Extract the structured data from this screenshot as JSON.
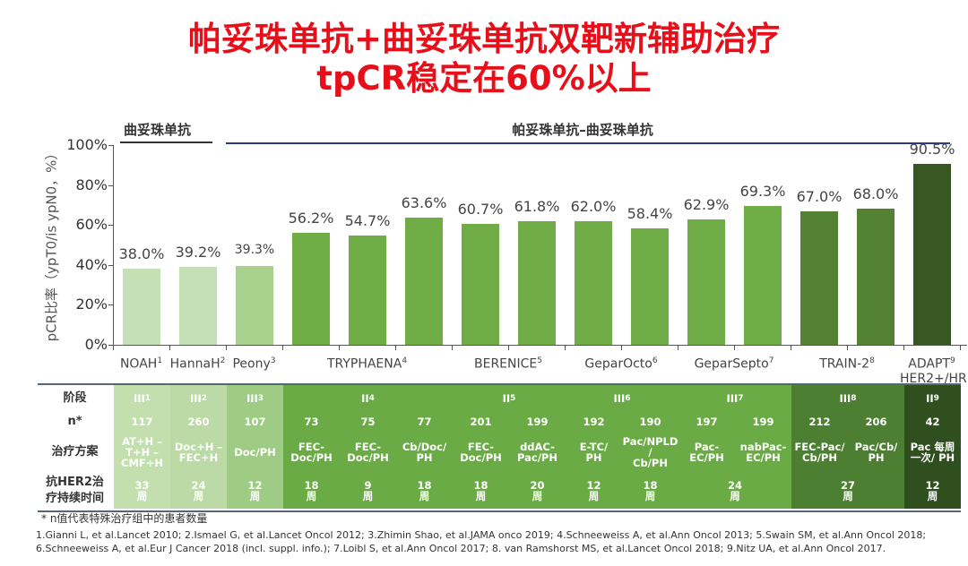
{
  "title_line1": "帕妥珠单抗+曲妥珠单抗双靶新辅助治疗",
  "title_line2": "tpCR稳定在60%以上",
  "group_left": "曲妥珠单抗",
  "group_right": "帕妥珠单抗–曲妥珠单抗",
  "colors": {
    "title": "#e60f1a",
    "group_line": "#2b3990"
  },
  "chart_data": {
    "type": "bar",
    "ylabel": "pCR比率（ypT0/is ypN0，%）",
    "ylim": [
      0,
      100
    ],
    "yticks": [
      "0%",
      "20%",
      "40%",
      "60%",
      "80%",
      "100%"
    ],
    "values": [
      38.0,
      39.2,
      39.3,
      56.2,
      54.7,
      63.6,
      60.7,
      61.8,
      62.0,
      58.4,
      62.9,
      69.3,
      67.0,
      68.0,
      90.5
    ],
    "value_labels": [
      "38.0%",
      "39.2%",
      "39.3%",
      "56.2%",
      "54.7%",
      "63.6%",
      "60.7%",
      "61.8%",
      "62.0%",
      "58.4%",
      "62.9%",
      "69.3%",
      "67.0%",
      "68.0%",
      "90.5%"
    ],
    "bar_colors": [
      "#c5e0b4",
      "#c5e0b4",
      "#a9d18e",
      "#70ad47",
      "#70ad47",
      "#70ad47",
      "#70ad47",
      "#70ad47",
      "#70ad47",
      "#70ad47",
      "#70ad47",
      "#70ad47",
      "#548235",
      "#548235",
      "#385723"
    ],
    "studies": [
      {
        "name": "NOAH",
        "ref": "1",
        "start": 0,
        "span": 1
      },
      {
        "name": "HannaH",
        "ref": "2",
        "start": 1,
        "span": 1
      },
      {
        "name": "Peony",
        "ref": "3",
        "start": 2,
        "span": 1
      },
      {
        "name": "TRYPHAENA",
        "ref": "4",
        "start": 3,
        "span": 3
      },
      {
        "name": "BERENICE",
        "ref": "5",
        "start": 6,
        "span": 2
      },
      {
        "name": "GeparOcto",
        "ref": "6",
        "start": 8,
        "span": 2
      },
      {
        "name": "GeparSepto",
        "ref": "7",
        "start": 10,
        "span": 2
      },
      {
        "name": "TRAIN-2",
        "ref": "8",
        "start": 12,
        "span": 2
      },
      {
        "name": "ADAPT",
        "ref": "9",
        "sub": "HER2+/HR−",
        "start": 14,
        "span": 1
      }
    ],
    "grid": false,
    "legend": "none"
  },
  "table": {
    "row_labels": [
      "阶段",
      "n*",
      "治疗方案",
      "抗HER2治疗持续时间"
    ],
    "column_colors": [
      "#c4dfae",
      "#bcdaa6",
      "#9fcc85",
      "#6bab46",
      "#6bab46",
      "#6bab46",
      "#6bab46",
      "#6bab46",
      "#6bab46",
      "#6bab46",
      "#6bab46",
      "#6bab46",
      "#4c7f32",
      "#4c7f32",
      "#2f4f1f"
    ],
    "phase": [
      {
        "text": "III",
        "ref": "1",
        "start": 0,
        "span": 1
      },
      {
        "text": "III",
        "ref": "2",
        "start": 1,
        "span": 1
      },
      {
        "text": "III",
        "ref": "3",
        "start": 2,
        "span": 1
      },
      {
        "text": "II",
        "ref": "4",
        "start": 3,
        "span": 3
      },
      {
        "text": "II",
        "ref": "5",
        "start": 6,
        "span": 2
      },
      {
        "text": "III",
        "ref": "6",
        "start": 8,
        "span": 2
      },
      {
        "text": "III",
        "ref": "7",
        "start": 10,
        "span": 2
      },
      {
        "text": "III",
        "ref": "8",
        "start": 12,
        "span": 2
      },
      {
        "text": "II",
        "ref": "9",
        "start": 14,
        "span": 1
      }
    ],
    "n": [
      "117",
      "260",
      "107",
      "73",
      "75",
      "77",
      "201",
      "199",
      "192",
      "190",
      "197",
      "199",
      "212",
      "206",
      "42"
    ],
    "regimen": [
      "AT+H –\nT+H –\nCMF+H",
      "Doc+H –\nFEC+H",
      "Doc/PH",
      "FEC-\nDoc/PH",
      "FEC-\nDoc/PH",
      "Cb/Doc/\nPH",
      "FEC-\nDoc/PH",
      "ddAC-\nPac/PH",
      "E-TC/\nPH",
      "Pac/NPLD\n/\nCb/PH",
      "Pac-\nEC/PH",
      "nabPac-\nEC/PH",
      "FEC-Pac/\nCb/PH",
      "Pac/Cb/\nPH",
      "Pac 每周\n一次/ PH"
    ],
    "duration": [
      {
        "text": "33\n周",
        "start": 0,
        "span": 1
      },
      {
        "text": "24\n周",
        "start": 1,
        "span": 1
      },
      {
        "text": "12\n周",
        "start": 2,
        "span": 1
      },
      {
        "text": "18\n周",
        "start": 3,
        "span": 1
      },
      {
        "text": "9\n周",
        "start": 4,
        "span": 1
      },
      {
        "text": "18\n周",
        "start": 5,
        "span": 1
      },
      {
        "text": "18\n周",
        "start": 6,
        "span": 1
      },
      {
        "text": "20\n周",
        "start": 7,
        "span": 1
      },
      {
        "text": "12\n周",
        "start": 8,
        "span": 1
      },
      {
        "text": "18\n周",
        "start": 9,
        "span": 1
      },
      {
        "text": "24\n周",
        "start": 10,
        "span": 2
      },
      {
        "text": "27\n周",
        "start": 12,
        "span": 2
      },
      {
        "text": "12\n周",
        "start": 14,
        "span": 1
      }
    ]
  },
  "footnote": "* n值代表特殊治疗组中的患者数量",
  "references": "1.Gianni L, et al.Lancet 2010; 2.Ismael G, et al.Lancet Oncol 2012; 3.Zhimin Shao, et al.JAMA onco 2019; 4.Schneeweiss A, et al.Ann Oncol 2013; 5.Swain SM, et al.Ann Oncol 2018; 6.Schneeweiss A, et al.Eur J Cancer 2018 (incl. suppl. info.); 7.Loibl S, et al.Ann Oncol 2017; 8. van Ramshorst MS, et al.Lancet Oncol 2018; 9.Nitz UA, et al.Ann Oncol 2017."
}
